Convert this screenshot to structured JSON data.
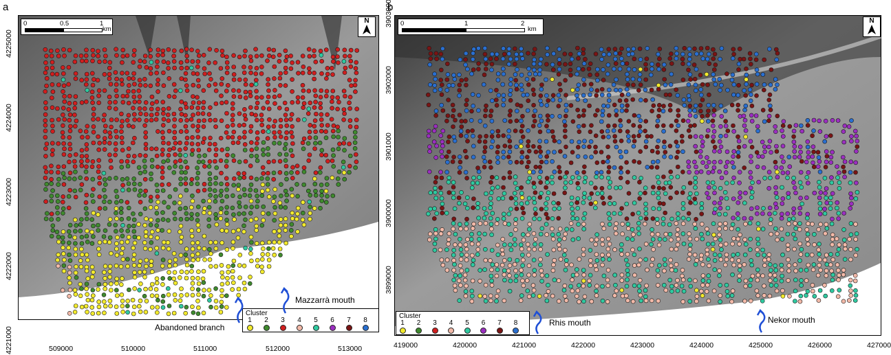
{
  "panels": [
    {
      "id": "a",
      "letter": "a",
      "x_ticks": [
        "509000",
        "510000",
        "511000",
        "512000",
        "513000"
      ],
      "y_ticks": [
        "4221000",
        "4222000",
        "4223000",
        "4224000",
        "4225000"
      ],
      "scale_labels": [
        "0",
        "0.5",
        "1",
        "km"
      ],
      "north_label": "N",
      "legend_title": "Cluster",
      "annotations": [
        "Abandoned branch",
        "Mazzarrà mouth"
      ]
    },
    {
      "id": "b",
      "letter": "b",
      "x_ticks": [
        "419000",
        "420000",
        "421000",
        "422000",
        "423000",
        "424000",
        "425000",
        "426000",
        "427000"
      ],
      "y_ticks": [
        "3899000",
        "3900000",
        "3901000",
        "3902000",
        "3903000"
      ],
      "scale_labels": [
        "0",
        "1",
        "2",
        "km"
      ],
      "north_label": "N",
      "legend_title": "Cluster",
      "annotations": [
        "Rhis mouth",
        "Nekor mouth"
      ]
    }
  ],
  "clusters": [
    {
      "label": "1",
      "color": "#f2ea2e"
    },
    {
      "label": "2",
      "color": "#3f8a2e"
    },
    {
      "label": "3",
      "color": "#d01e1e"
    },
    {
      "label": "4",
      "color": "#f2b9a8"
    },
    {
      "label": "5",
      "color": "#2fc9a0"
    },
    {
      "label": "6",
      "color": "#9b2fc0"
    },
    {
      "label": "7",
      "color": "#7a1414"
    },
    {
      "label": "8",
      "color": "#2a6fd0"
    }
  ],
  "arrow_color": "#1f4fd6"
}
